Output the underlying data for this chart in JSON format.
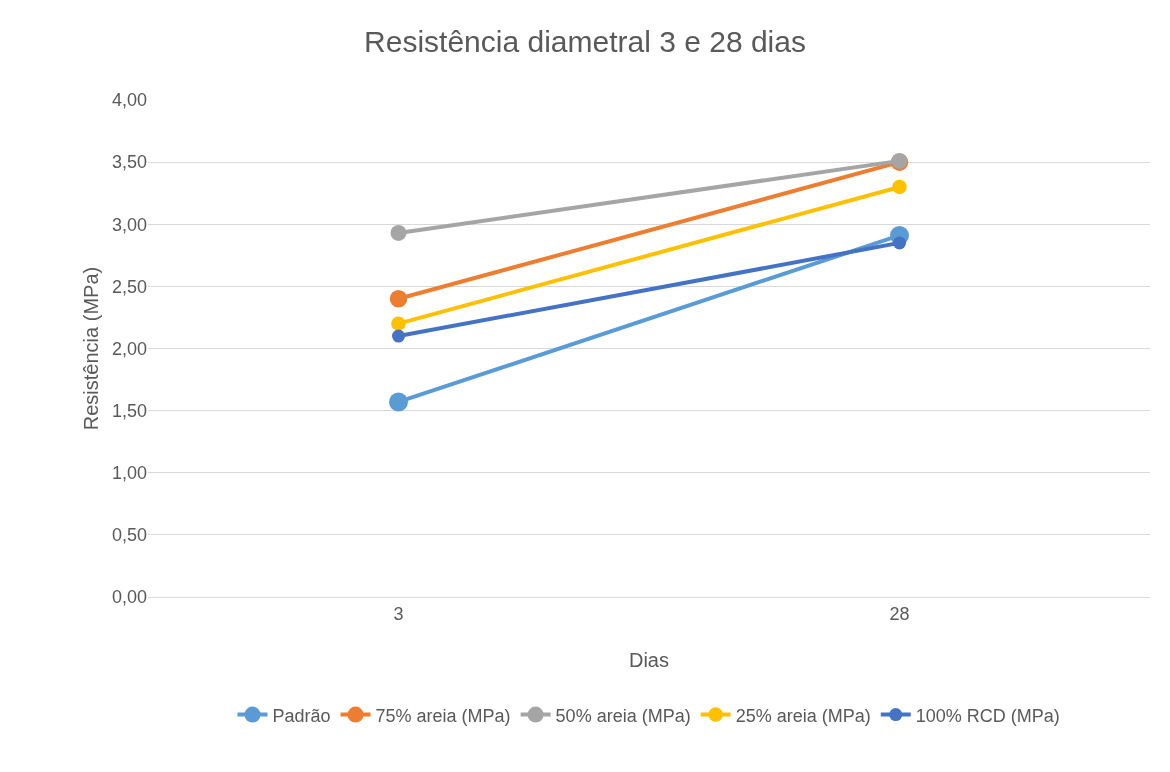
{
  "chart_data": {
    "type": "line",
    "title": "Resistência diametral 3 e 28 dias",
    "xlabel": "Dias",
    "ylabel": "Resistência (MPa)",
    "categories": [
      "3",
      "28"
    ],
    "series": [
      {
        "name": "Padrão",
        "color": "#5b9bd5",
        "values": [
          1.57,
          2.91
        ]
      },
      {
        "name": "75% areia (MPa)",
        "color": "#ed7d31",
        "values": [
          2.4,
          3.5
        ]
      },
      {
        "name": "50% areia (MPa)",
        "color": "#a5a5a5",
        "values": [
          2.93,
          3.51
        ]
      },
      {
        "name": "25% areia (MPa)",
        "color": "#ffc000",
        "values": [
          2.2,
          3.3
        ]
      },
      {
        "name": "100% RCD (MPa)",
        "color": "#4472c4",
        "values": [
          2.1,
          2.85
        ]
      }
    ],
    "ylim": [
      0,
      4
    ],
    "yticks": [
      {
        "value": 0,
        "label": "0,00"
      },
      {
        "value": 0.5,
        "label": "0,50"
      },
      {
        "value": 1,
        "label": "1,00"
      },
      {
        "value": 1.5,
        "label": "1,50"
      },
      {
        "value": 2,
        "label": "2,00"
      },
      {
        "value": 2.5,
        "label": "2,50"
      },
      {
        "value": 3,
        "label": "3,00"
      },
      {
        "value": 3.5,
        "label": "3,50"
      },
      {
        "value": 4,
        "label": "4,00"
      }
    ],
    "grid": "y",
    "legend": "bottom",
    "marker": "circle",
    "line_style": "solid"
  }
}
